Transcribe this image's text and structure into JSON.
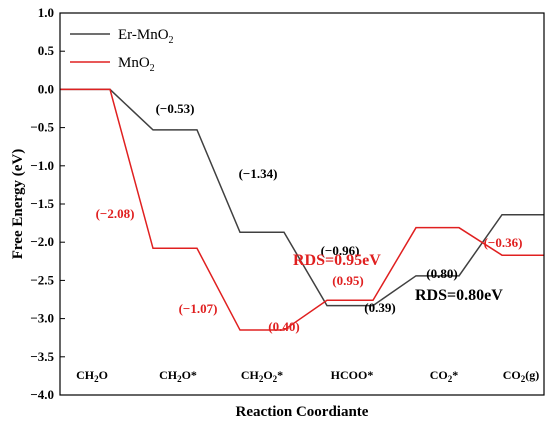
{
  "chart_data": {
    "type": "line",
    "title": "",
    "xlabel": "Reaction Coordiante",
    "ylabel": "Free Energy (eV)",
    "ylim": [
      -4.0,
      1.0
    ],
    "yticks": [
      "1.0",
      "0.5",
      "0.0",
      "-0.5",
      "-1.0",
      "-1.5",
      "-2.0",
      "-2.5",
      "-3.0",
      "-3.5",
      "-4.0"
    ],
    "categories": [
      "CH<sub>2</sub>O",
      "CH<sub>2</sub>O*",
      "CH<sub>2</sub>O<sub>2</sub>*",
      "HCOO*",
      "CO<sub>2</sub>*",
      "CO<sub>2</sub>(g)"
    ],
    "state_labels": [
      {
        "main": "CH",
        "sub": "2",
        "rest": "O",
        "tail": ""
      },
      {
        "main": "CH",
        "sub": "2",
        "rest": "O*",
        "tail": ""
      },
      {
        "main": "CH",
        "sub": "2",
        "rest": "O",
        "sub2": "2",
        "tail": "*"
      },
      {
        "main": "HCOO*",
        "sub": "",
        "rest": "",
        "tail": ""
      },
      {
        "main": "CO",
        "sub": "2",
        "rest": "*",
        "tail": ""
      },
      {
        "main": "CO",
        "sub": "2",
        "rest": "(g)",
        "tail": ""
      }
    ],
    "legend_position": "top-left",
    "series": [
      {
        "name": "Er-MnO2",
        "name_main": "Er-MnO",
        "name_sub": "2",
        "color": "#404040",
        "values": [
          0.0,
          -0.53,
          -1.87,
          -2.83,
          -2.44,
          -1.64
        ],
        "step_labels": [
          "(−0.53)",
          "(−1.34)",
          "(−0.96)",
          "(0.39)",
          "(0.80)"
        ]
      },
      {
        "name": "MnO2",
        "name_main": "MnO",
        "name_sub": "2",
        "color": "#e02020",
        "values": [
          0.0,
          -2.08,
          -3.15,
          -2.76,
          -1.81,
          -2.17
        ],
        "step_labels": [
          "(−2.08)",
          "(−1.07)",
          "(0.40)",
          "(0.95)",
          "(−0.36)"
        ]
      }
    ],
    "annotations": {
      "rds_mno2": "RDS=0.95eV",
      "rds_er": "RDS=0.80eV"
    }
  }
}
